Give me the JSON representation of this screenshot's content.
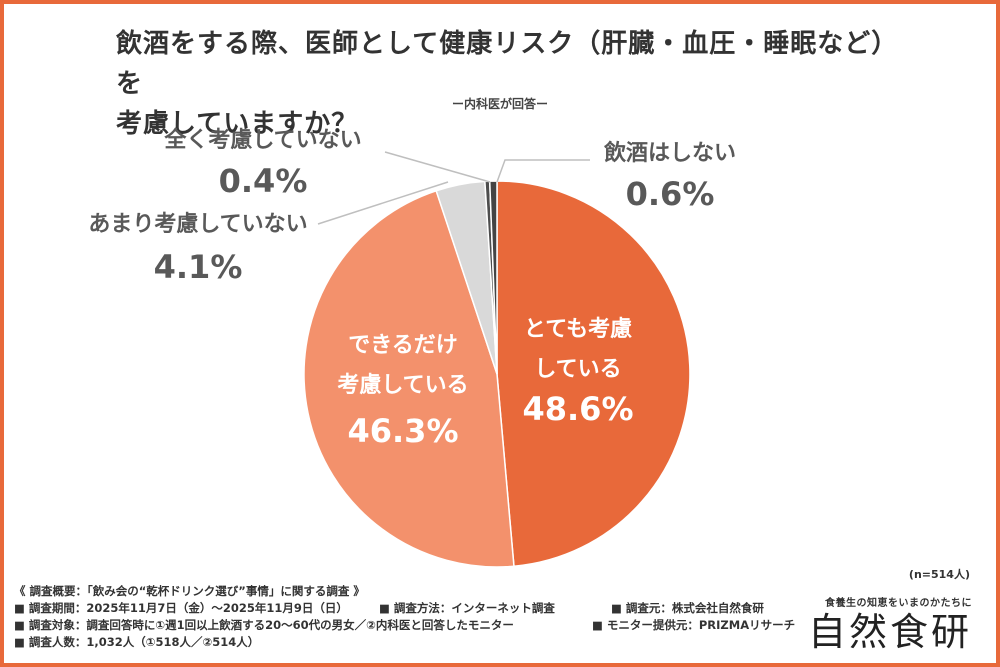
{
  "title_line1": "飲酒をする際、医師として健康リスク（肝臓・血圧・睡眠など）を",
  "title_line2": "考慮していますか？",
  "subtitle": "ー内科医が回答ー",
  "sample_size": "(n=514人)",
  "footer": {
    "heading": "《 調査概要：「飲み会の“乾杯ドリンク選び”事情」に関する調査 》",
    "period": "■ 調査期間：2025年11月7日（金）〜2025年11月9日（日）",
    "method": "■ 調査方法：インターネット調査",
    "source": "■ 調査元：株式会社自然食研",
    "target": "■ 調査対象：調査回答時に①週1回以上飲酒する20〜60代の男女／②内科医と回答したモニター",
    "provider": "■ モニター提供元：PRIZMAリサーチ",
    "count": "■ 調査人数：1,032人（①518人／②514人）"
  },
  "brand": {
    "tagline": "食養生の知恵をいまのかたちに",
    "name": "自然食研"
  },
  "colors": {
    "accent": "#e8693a",
    "slice_main": "#e8693a",
    "slice_second": "#f3916c",
    "slice_third": "#d9d9d9",
    "slice_fourth": "#4d4d4d",
    "slice_fifth": "#444444",
    "label_gray": "#595959"
  },
  "chart_data": {
    "type": "pie",
    "title": "飲酒をする際、医師として健康リスク（肝臓・血圧・睡眠など）を考慮していますか？",
    "start": "12 o'clock, clockwise",
    "slices": [
      {
        "label_lines": [
          "とても考慮",
          "している"
        ],
        "value": 48.6,
        "value_label": "48.6%",
        "color_key": "slice_main",
        "label_position": "inside"
      },
      {
        "label_lines": [
          "できるだけ",
          "考慮している"
        ],
        "value": 46.3,
        "value_label": "46.3%",
        "color_key": "slice_second",
        "label_position": "inside"
      },
      {
        "label_lines": [
          "あまり考慮していない"
        ],
        "value": 4.1,
        "value_label": "4.1%",
        "color_key": "slice_third",
        "label_position": "outside"
      },
      {
        "label_lines": [
          "全く考慮していない"
        ],
        "value": 0.4,
        "value_label": "0.4%",
        "color_key": "slice_fourth",
        "label_position": "outside"
      },
      {
        "label_lines": [
          "飲酒はしない"
        ],
        "value": 0.6,
        "value_label": "0.6%",
        "color_key": "slice_fifth",
        "label_position": "outside"
      }
    ]
  }
}
